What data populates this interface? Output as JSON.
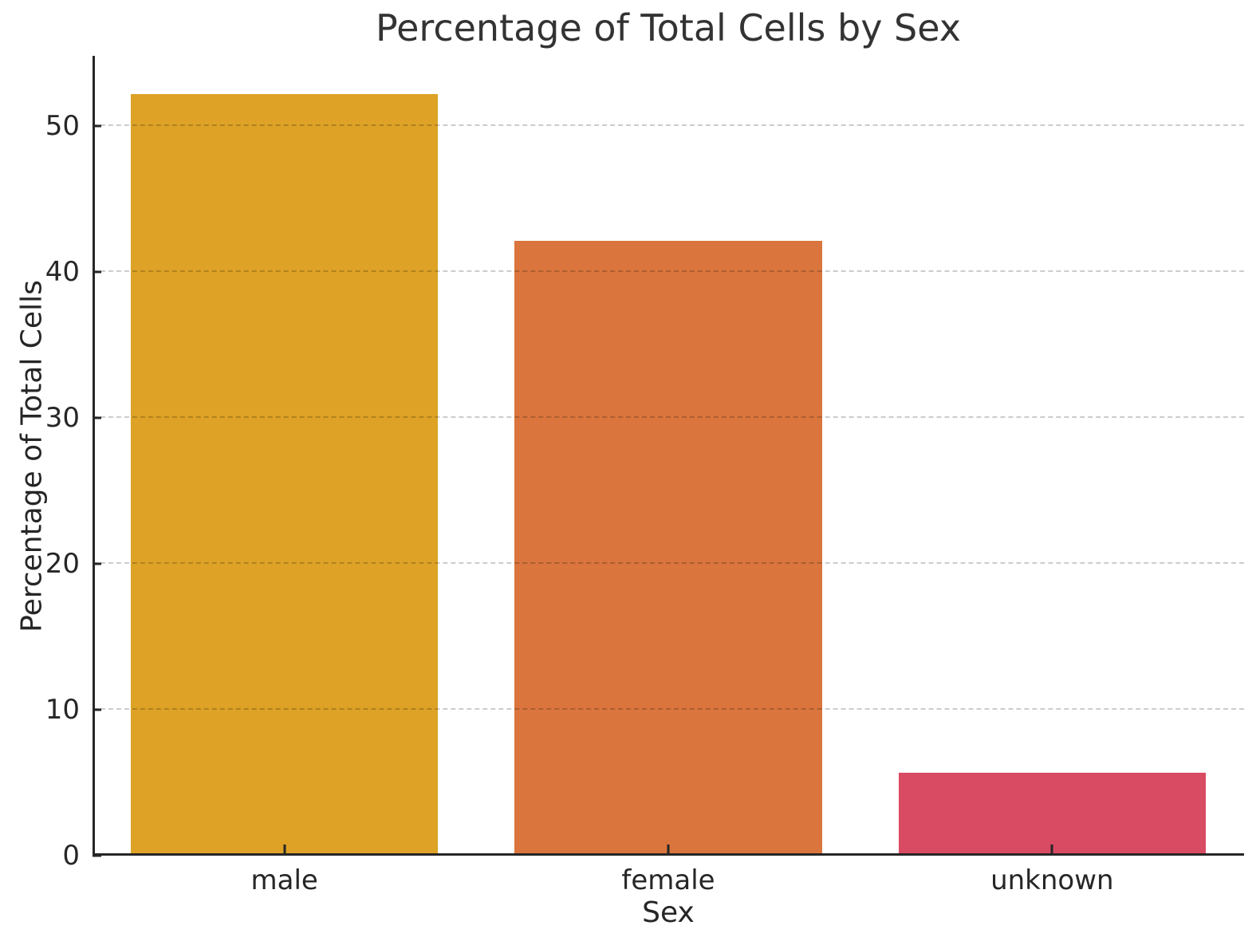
{
  "chart_data": {
    "type": "bar",
    "title": "Percentage of Total Cells by Sex",
    "xlabel": "Sex",
    "ylabel": "Percentage of Total Cells",
    "categories": [
      "male",
      "female",
      "unknown"
    ],
    "values": [
      52.2,
      42.1,
      5.7
    ],
    "bar_colors": [
      "#DDA226",
      "#D9753D",
      "#D94A63"
    ],
    "yticks": [
      0,
      10,
      20,
      30,
      40,
      50
    ],
    "ylim": [
      0,
      54.8
    ],
    "bar_width_fraction": 0.8,
    "grid": {
      "axis": "y",
      "style": "dashed",
      "color": "#cccccc"
    },
    "axis_color": "#262626",
    "legend": "none"
  }
}
